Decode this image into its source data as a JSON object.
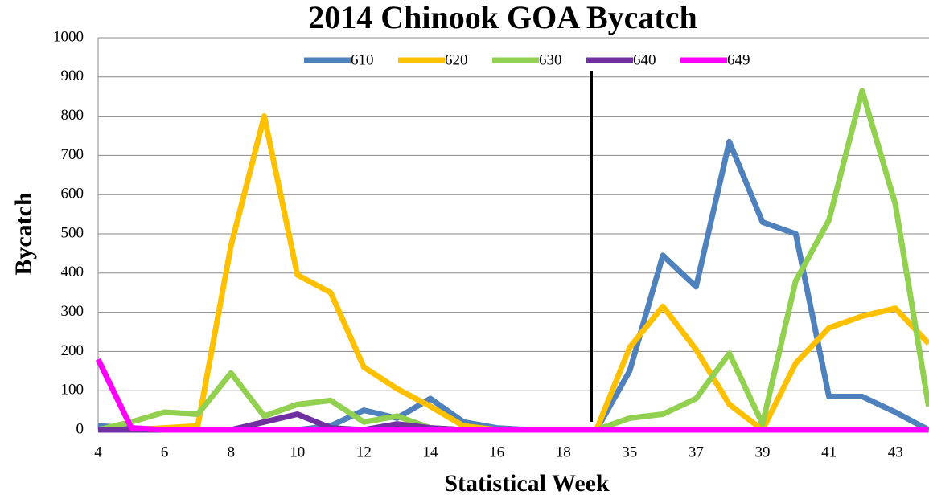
{
  "chart_data": {
    "type": "line",
    "title": "2014 Chinook GOA Bycatch",
    "x_label": "Statistical Week",
    "y_label": "Bycatch",
    "categories": [
      4,
      null,
      6,
      null,
      8,
      null,
      10,
      null,
      12,
      null,
      14,
      null,
      16,
      null,
      18,
      null,
      35,
      null,
      37,
      null,
      39,
      null,
      41,
      null,
      43,
      null
    ],
    "ylim": [
      0,
      1000
    ],
    "yticks": [
      0,
      100,
      200,
      300,
      400,
      500,
      600,
      700,
      800,
      900,
      1000
    ],
    "grid": true,
    "legend": "top",
    "series": [
      {
        "name": "610",
        "color": "#4f81bd",
        "values": [
          10,
          5,
          0,
          0,
          0,
          0,
          0,
          10,
          50,
          30,
          80,
          20,
          5,
          0,
          0,
          0,
          150,
          445,
          365,
          735,
          530,
          500,
          85,
          85,
          45,
          0
        ]
      },
      {
        "name": "620",
        "color": "#ffc000",
        "values": [
          0,
          0,
          5,
          10,
          470,
          800,
          395,
          350,
          160,
          105,
          60,
          10,
          0,
          0,
          0,
          0,
          210,
          315,
          205,
          65,
          0,
          170,
          260,
          290,
          310,
          220
        ]
      },
      {
        "name": "630",
        "color": "#92d050",
        "values": [
          0,
          20,
          45,
          40,
          145,
          35,
          65,
          75,
          20,
          35,
          5,
          0,
          0,
          0,
          0,
          0,
          30,
          40,
          80,
          195,
          15,
          380,
          535,
          865,
          575,
          60
        ]
      },
      {
        "name": "640",
        "color": "#7030a0",
        "values": [
          0,
          0,
          0,
          0,
          0,
          20,
          40,
          5,
          0,
          15,
          5,
          0,
          0,
          0,
          0,
          0,
          0,
          0,
          0,
          0,
          0,
          0,
          0,
          0,
          0,
          0
        ]
      },
      {
        "name": "649",
        "color": "#ff00ff",
        "values": [
          180,
          5,
          0,
          0,
          0,
          0,
          0,
          0,
          0,
          0,
          0,
          0,
          0,
          0,
          0,
          0,
          0,
          0,
          0,
          0,
          0,
          0,
          0,
          0,
          0,
          0
        ]
      }
    ]
  }
}
